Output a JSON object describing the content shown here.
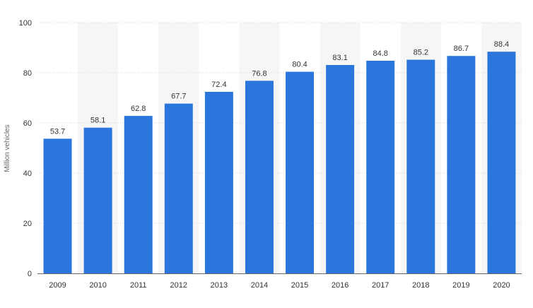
{
  "chart_data": {
    "type": "bar",
    "categories": [
      "2009",
      "2010",
      "2011",
      "2012",
      "2013",
      "2014",
      "2015",
      "2016",
      "2017",
      "2018",
      "2019",
      "2020"
    ],
    "values": [
      53.7,
      58.1,
      62.8,
      67.7,
      72.4,
      76.8,
      80.4,
      83.1,
      84.8,
      85.2,
      86.7,
      88.4
    ],
    "value_labels": [
      "53.7",
      "58.1",
      "62.8",
      "67.7",
      "72.4",
      "76.8",
      "80.4",
      "83.1",
      "84.8",
      "85.2",
      "86.7",
      "88.4"
    ],
    "ylabel": "Million vehicles",
    "yticks": [
      "0",
      "20",
      "40",
      "60",
      "80",
      "100"
    ],
    "ylim": [
      0,
      100
    ],
    "grid": true,
    "colors": {
      "bar": "#2a76dd",
      "band": "#f6f6f6"
    }
  }
}
